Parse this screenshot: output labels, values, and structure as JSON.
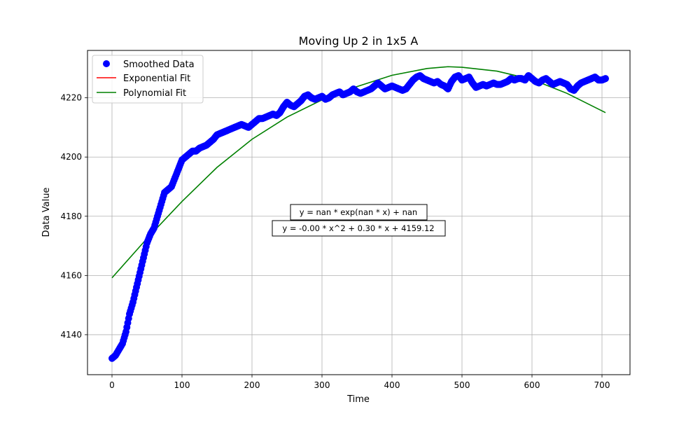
{
  "chart_data": {
    "type": "scatter",
    "title": "Moving Up 2 in 1x5 A",
    "xlabel": "Time",
    "ylabel": "Data Value",
    "xlim": [
      -35,
      740
    ],
    "ylim": [
      4126.5,
      4236
    ],
    "xticks": [
      0,
      100,
      200,
      300,
      400,
      500,
      600,
      700
    ],
    "yticks": [
      4140,
      4160,
      4180,
      4200,
      4220
    ],
    "grid": true,
    "legend_position": "top-left",
    "legend": [
      {
        "label": "Smoothed Data",
        "marker": "circle",
        "color": "#0000ff"
      },
      {
        "label": "Exponential Fit",
        "marker": "line",
        "color": "#ff0000"
      },
      {
        "label": "Polynomial Fit",
        "marker": "line",
        "color": "#008000"
      }
    ],
    "annotations": [
      "y = nan * exp(nan * x) + nan",
      "y = -0.00 * x^2 + 0.30 * x + 4159.12"
    ],
    "series": [
      {
        "name": "Smoothed Data",
        "color": "#0000ff",
        "points": [
          [
            0,
            4132
          ],
          [
            5,
            4133
          ],
          [
            10,
            4135
          ],
          [
            15,
            4137
          ],
          [
            20,
            4141
          ],
          [
            25,
            4147
          ],
          [
            30,
            4151
          ],
          [
            35,
            4156
          ],
          [
            40,
            4161
          ],
          [
            45,
            4166
          ],
          [
            50,
            4171
          ],
          [
            55,
            4174
          ],
          [
            60,
            4176
          ],
          [
            65,
            4180
          ],
          [
            70,
            4184
          ],
          [
            75,
            4188
          ],
          [
            80,
            4189
          ],
          [
            85,
            4190
          ],
          [
            90,
            4193
          ],
          [
            95,
            4196
          ],
          [
            100,
            4199
          ],
          [
            105,
            4200
          ],
          [
            110,
            4201
          ],
          [
            115,
            4202
          ],
          [
            120,
            4202
          ],
          [
            125,
            4203
          ],
          [
            130,
            4203.5
          ],
          [
            135,
            4204
          ],
          [
            140,
            4205
          ],
          [
            145,
            4206
          ],
          [
            150,
            4207.5
          ],
          [
            155,
            4208
          ],
          [
            160,
            4208.5
          ],
          [
            165,
            4209
          ],
          [
            170,
            4209.5
          ],
          [
            175,
            4210
          ],
          [
            180,
            4210.5
          ],
          [
            185,
            4211
          ],
          [
            190,
            4210.5
          ],
          [
            195,
            4210
          ],
          [
            200,
            4211
          ],
          [
            205,
            4212
          ],
          [
            210,
            4213
          ],
          [
            215,
            4213
          ],
          [
            220,
            4213.5
          ],
          [
            225,
            4214
          ],
          [
            230,
            4214.5
          ],
          [
            235,
            4214
          ],
          [
            240,
            4215
          ],
          [
            245,
            4217
          ],
          [
            250,
            4218.5
          ],
          [
            255,
            4217.5
          ],
          [
            260,
            4217
          ],
          [
            265,
            4218
          ],
          [
            270,
            4219
          ],
          [
            275,
            4220.5
          ],
          [
            280,
            4221
          ],
          [
            285,
            4220
          ],
          [
            290,
            4219.5
          ],
          [
            295,
            4220
          ],
          [
            300,
            4220.5
          ],
          [
            305,
            4219.5
          ],
          [
            310,
            4220
          ],
          [
            315,
            4221
          ],
          [
            320,
            4221.5
          ],
          [
            325,
            4222
          ],
          [
            330,
            4221
          ],
          [
            335,
            4221.5
          ],
          [
            340,
            4222
          ],
          [
            345,
            4223
          ],
          [
            350,
            4222
          ],
          [
            355,
            4221.5
          ],
          [
            360,
            4222
          ],
          [
            365,
            4222.5
          ],
          [
            370,
            4223
          ],
          [
            375,
            4224
          ],
          [
            380,
            4225
          ],
          [
            385,
            4224
          ],
          [
            390,
            4223
          ],
          [
            395,
            4223.5
          ],
          [
            400,
            4224
          ],
          [
            405,
            4223.5
          ],
          [
            410,
            4223
          ],
          [
            415,
            4222.5
          ],
          [
            420,
            4223
          ],
          [
            425,
            4224.5
          ],
          [
            430,
            4226
          ],
          [
            435,
            4227
          ],
          [
            440,
            4227.5
          ],
          [
            445,
            4226.5
          ],
          [
            450,
            4226
          ],
          [
            455,
            4225.5
          ],
          [
            460,
            4225
          ],
          [
            465,
            4225.5
          ],
          [
            470,
            4224.5
          ],
          [
            475,
            4224
          ],
          [
            480,
            4223
          ],
          [
            485,
            4225.5
          ],
          [
            490,
            4227
          ],
          [
            495,
            4227.5
          ],
          [
            500,
            4226
          ],
          [
            505,
            4226.5
          ],
          [
            510,
            4227
          ],
          [
            515,
            4225
          ],
          [
            520,
            4223.5
          ],
          [
            525,
            4224
          ],
          [
            530,
            4224.5
          ],
          [
            535,
            4224
          ],
          [
            540,
            4224.5
          ],
          [
            545,
            4225
          ],
          [
            550,
            4224.5
          ],
          [
            555,
            4224.5
          ],
          [
            560,
            4225
          ],
          [
            565,
            4225.5
          ],
          [
            570,
            4226.5
          ],
          [
            575,
            4226
          ],
          [
            580,
            4226.5
          ],
          [
            585,
            4226.5
          ],
          [
            590,
            4226
          ],
          [
            595,
            4227.5
          ],
          [
            600,
            4226.5
          ],
          [
            605,
            4225.5
          ],
          [
            610,
            4225
          ],
          [
            615,
            4226
          ],
          [
            620,
            4226.5
          ],
          [
            625,
            4225.5
          ],
          [
            630,
            4224.5
          ],
          [
            635,
            4225
          ],
          [
            640,
            4225.5
          ],
          [
            645,
            4225
          ],
          [
            650,
            4224.5
          ],
          [
            655,
            4223
          ],
          [
            660,
            4222.5
          ],
          [
            665,
            4224
          ],
          [
            670,
            4225
          ],
          [
            675,
            4225.5
          ],
          [
            680,
            4226
          ],
          [
            685,
            4226.5
          ],
          [
            690,
            4227
          ],
          [
            695,
            4226
          ],
          [
            700,
            4226
          ],
          [
            705,
            4226.5
          ]
        ]
      },
      {
        "name": "Polynomial Fit",
        "color": "#008000",
        "x": [
          0,
          50,
          100,
          150,
          200,
          250,
          300,
          350,
          400,
          450,
          480,
          500,
          550,
          600,
          650,
          705
        ],
        "values": [
          4159.2,
          4172.5,
          4185.0,
          4196.5,
          4206.0,
          4213.5,
          4219.3,
          4223.8,
          4227.6,
          4229.9,
          4230.5,
          4230.3,
          4229.0,
          4226.2,
          4221.5,
          4215.0
        ]
      },
      {
        "name": "Exponential Fit",
        "color": "#ff0000",
        "values": []
      }
    ]
  }
}
